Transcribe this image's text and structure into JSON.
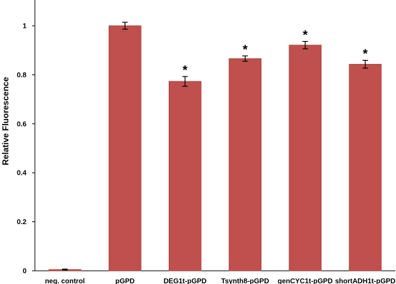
{
  "chart_data": {
    "type": "bar",
    "title": "",
    "xlabel": "",
    "ylabel": "Relative Fluorescence",
    "ylim": [
      0,
      1.1
    ],
    "yticks": [
      0,
      0.2,
      0.4,
      0.6,
      0.8,
      1
    ],
    "grid": false,
    "legend": "none",
    "categories": [
      "neg. control",
      "pGPD",
      "DEG1t-pGPD",
      "Tsynth8-pGPD",
      "genCYC1t-pGPD",
      "shortADH1t-pGPD"
    ],
    "values": [
      0.005,
      1.0,
      0.773,
      0.866,
      0.921,
      0.843
    ],
    "errors": [
      0.002,
      0.014,
      0.02,
      0.011,
      0.015,
      0.016
    ],
    "significance": [
      "",
      "",
      "*",
      "*",
      "*",
      "*"
    ],
    "bar_color": "#c0504d",
    "bar_edge_color": "#a33b38"
  }
}
